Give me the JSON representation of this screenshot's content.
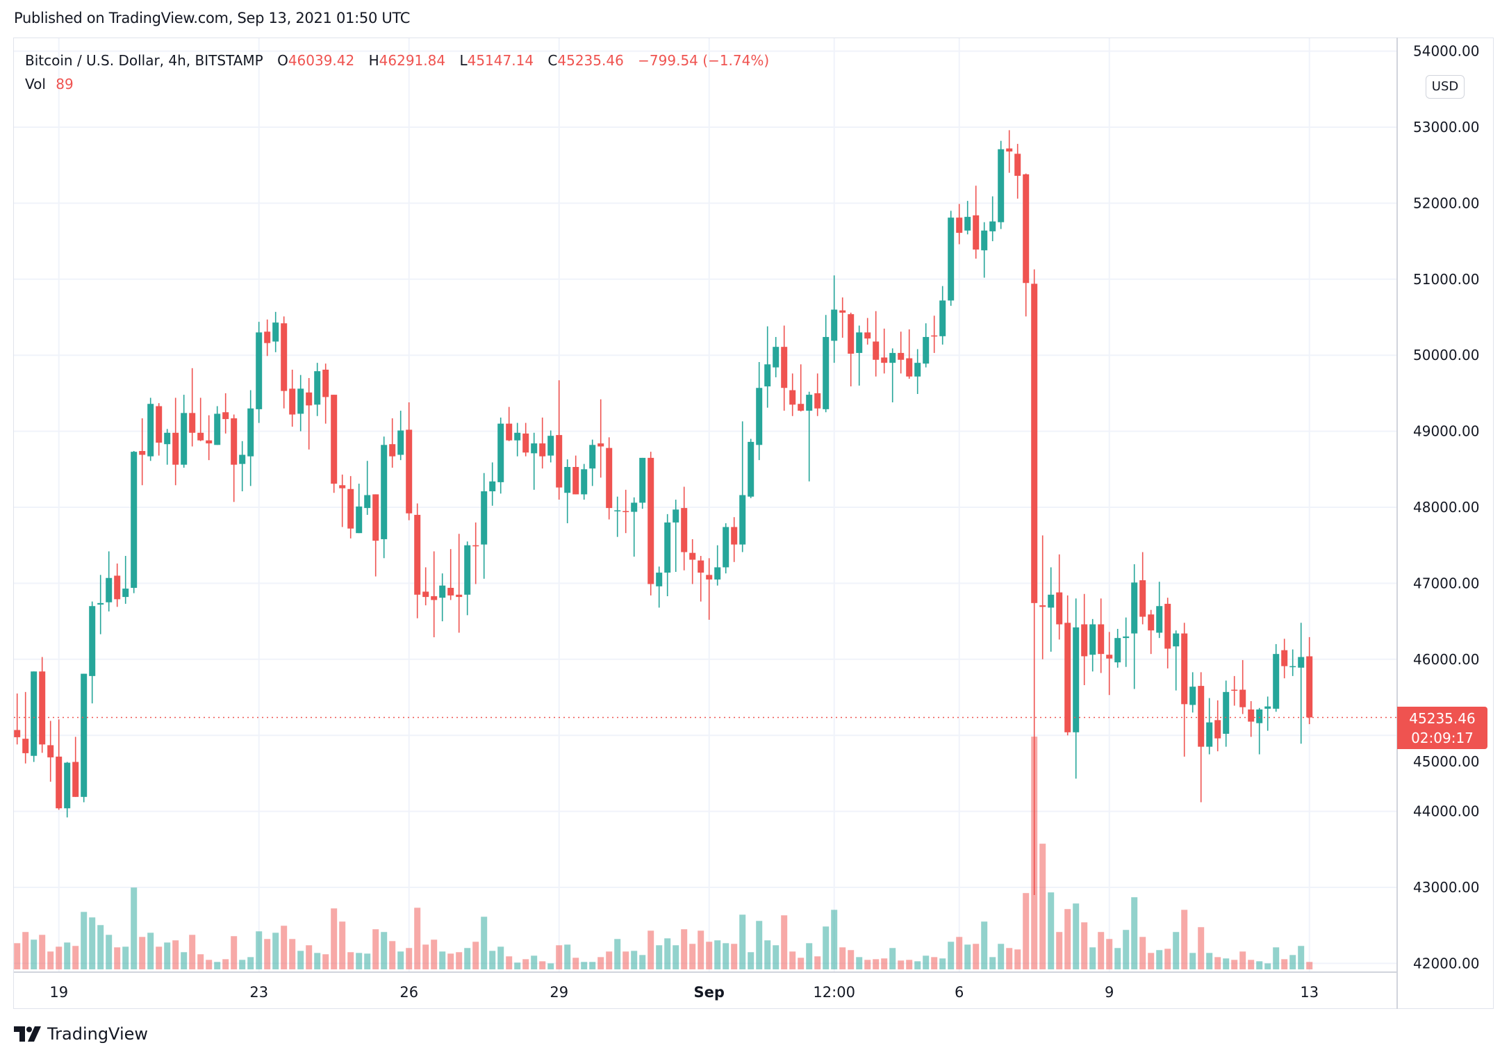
{
  "header": {
    "published": "Published on TradingView.com, Sep 13, 2021 01:50 UTC"
  },
  "legend": {
    "symbol": "Bitcoin / U.S. Dollar, 4h, BITSTAMP",
    "o_label": "O",
    "o": "46039.42",
    "h_label": "H",
    "h": "46291.84",
    "l_label": "L",
    "l": "45147.14",
    "c_label": "C",
    "c": "45235.46",
    "change": "−799.54 (−1.74%)",
    "vol_label": "Vol",
    "vol": "89"
  },
  "price_axis": {
    "currency": "USD",
    "last_price": "45235.46",
    "countdown": "02:09:17"
  },
  "footer": {
    "brand": "TradingView"
  },
  "colors": {
    "up": "#26a69a",
    "down": "#ef5350",
    "text": "#131722",
    "grid": "#f0f3fa"
  },
  "chart_data": {
    "type": "candlestick",
    "title": "Bitcoin / U.S. Dollar, 4h, BITSTAMP",
    "xlabel": "",
    "ylabel": "USD",
    "ylim": [
      41900,
      54000
    ],
    "grid": true,
    "last_price": 45235.46,
    "yticks": [
      {
        "value": 54000,
        "label": "54000.00"
      },
      {
        "value": 53000,
        "label": "53000.00"
      },
      {
        "value": 52000,
        "label": "52000.00"
      },
      {
        "value": 51000,
        "label": "51000.00"
      },
      {
        "value": 50000,
        "label": "50000.00"
      },
      {
        "value": 49000,
        "label": "49000.00"
      },
      {
        "value": 48000,
        "label": "48000.00"
      },
      {
        "value": 47000,
        "label": "47000.00"
      },
      {
        "value": 46000,
        "label": "46000.00"
      },
      {
        "value": 45000,
        "label": "45000.00"
      },
      {
        "value": 44000,
        "label": "44000.00"
      },
      {
        "value": 43000,
        "label": "43000.00"
      },
      {
        "value": 42000,
        "label": "42000.00"
      }
    ],
    "xticks": [
      {
        "index": 5,
        "label": "19"
      },
      {
        "index": 29,
        "label": "23"
      },
      {
        "index": 47,
        "label": "26"
      },
      {
        "index": 65,
        "label": "29"
      },
      {
        "index": 83,
        "label": "Sep"
      },
      {
        "index": 98,
        "label": "12:00"
      },
      {
        "index": 113,
        "label": "6"
      },
      {
        "index": 131,
        "label": "9"
      },
      {
        "index": 155,
        "label": "13"
      }
    ],
    "candle_fields": [
      "open",
      "high",
      "low",
      "close",
      "volume"
    ],
    "candles": [
      [
        45070,
        45550,
        44880,
        44975,
        314
      ],
      [
        44955,
        45570,
        44630,
        44765,
        448
      ],
      [
        44730,
        45840,
        44650,
        45840,
        356
      ],
      [
        45840,
        46030,
        44770,
        44880,
        414
      ],
      [
        44870,
        45190,
        44390,
        44710,
        214
      ],
      [
        44720,
        45210,
        44020,
        44040,
        272
      ],
      [
        44040,
        44650,
        43920,
        44640,
        322
      ],
      [
        44650,
        44980,
        44190,
        44190,
        281
      ],
      [
        44190,
        45810,
        44120,
        45810,
        689
      ],
      [
        45780,
        46760,
        45420,
        46700,
        623
      ],
      [
        46720,
        47110,
        46330,
        46740,
        531
      ],
      [
        46750,
        47420,
        46630,
        47070,
        414
      ],
      [
        47100,
        47260,
        46690,
        46790,
        264
      ],
      [
        46820,
        47360,
        46730,
        46930,
        272
      ],
      [
        46940,
        48740,
        46870,
        48730,
        981
      ],
      [
        48740,
        49170,
        48290,
        48690,
        389
      ],
      [
        48670,
        49440,
        48610,
        49360,
        439
      ],
      [
        49330,
        49370,
        48680,
        48850,
        272
      ],
      [
        48830,
        49030,
        48560,
        48980,
        322
      ],
      [
        48980,
        49440,
        48290,
        48560,
        348
      ],
      [
        48560,
        49480,
        48520,
        49240,
        206
      ],
      [
        49240,
        49830,
        48800,
        48980,
        414
      ],
      [
        48980,
        49440,
        48870,
        48880,
        181
      ],
      [
        48880,
        49210,
        48620,
        48840,
        114
      ],
      [
        48820,
        49330,
        48820,
        49230,
        89
      ],
      [
        49250,
        49500,
        48970,
        49160,
        122
      ],
      [
        49170,
        49220,
        48070,
        48560,
        398
      ],
      [
        48570,
        48870,
        48210,
        48690,
        114
      ],
      [
        48670,
        49540,
        48280,
        49300,
        147
      ],
      [
        49290,
        50440,
        49110,
        50300,
        456
      ],
      [
        50310,
        50470,
        49990,
        50160,
        364
      ],
      [
        50180,
        50570,
        50040,
        50430,
        439
      ],
      [
        50420,
        50510,
        49300,
        49530,
        523
      ],
      [
        49560,
        49810,
        49060,
        49220,
        364
      ],
      [
        49230,
        49740,
        49000,
        49560,
        222
      ],
      [
        49510,
        49700,
        48760,
        49340,
        289
      ],
      [
        49350,
        49900,
        49200,
        49790,
        197
      ],
      [
        49810,
        49890,
        49100,
        49450,
        181
      ],
      [
        49480,
        49480,
        48190,
        48310,
        731
      ],
      [
        48290,
        48430,
        47740,
        48250,
        573
      ],
      [
        48240,
        48410,
        47590,
        47720,
        206
      ],
      [
        47660,
        48310,
        47660,
        48010,
        197
      ],
      [
        47990,
        48610,
        47900,
        48160,
        189
      ],
      [
        48170,
        48170,
        47090,
        47560,
        481
      ],
      [
        47580,
        48930,
        47330,
        48820,
        448
      ],
      [
        48830,
        49170,
        48520,
        48670,
        339
      ],
      [
        48690,
        49270,
        48620,
        49010,
        214
      ],
      [
        49020,
        49380,
        47830,
        47920,
        256
      ],
      [
        47900,
        48050,
        46540,
        46850,
        739
      ],
      [
        46890,
        47210,
        46710,
        46820,
        297
      ],
      [
        46830,
        47420,
        46290,
        46780,
        356
      ],
      [
        46810,
        47130,
        46500,
        46970,
        214
      ],
      [
        46940,
        47450,
        46780,
        46840,
        189
      ],
      [
        46850,
        47650,
        46350,
        46820,
        206
      ],
      [
        46850,
        47550,
        46580,
        47500,
        256
      ],
      [
        47500,
        47800,
        46990,
        47490,
        331
      ],
      [
        47510,
        48450,
        47060,
        48210,
        631
      ],
      [
        48210,
        48590,
        48020,
        48340,
        222
      ],
      [
        48330,
        49180,
        48180,
        49100,
        272
      ],
      [
        49100,
        49320,
        48870,
        48880,
        156
      ],
      [
        48880,
        49110,
        48670,
        48980,
        81
      ],
      [
        48970,
        49110,
        48670,
        48720,
        122
      ],
      [
        48710,
        48980,
        48230,
        48840,
        164
      ],
      [
        48840,
        49180,
        48510,
        48670,
        97
      ],
      [
        48680,
        49010,
        48590,
        48940,
        72
      ],
      [
        48950,
        49670,
        48100,
        48260,
        289
      ],
      [
        48190,
        48630,
        47790,
        48530,
        297
      ],
      [
        48530,
        48680,
        48170,
        48170,
        139
      ],
      [
        48170,
        48570,
        48100,
        48500,
        89
      ],
      [
        48510,
        48890,
        48280,
        48820,
        89
      ],
      [
        48840,
        49420,
        48390,
        48800,
        147
      ],
      [
        48780,
        48920,
        47840,
        47990,
        214
      ],
      [
        47950,
        48140,
        47610,
        47960,
        364
      ],
      [
        47950,
        48230,
        47660,
        47940,
        214
      ],
      [
        47940,
        48130,
        47350,
        48060,
        222
      ],
      [
        48060,
        48650,
        47980,
        48650,
        172
      ],
      [
        48650,
        48730,
        46840,
        46990,
        464
      ],
      [
        46960,
        47220,
        46680,
        47140,
        289
      ],
      [
        47140,
        47910,
        46830,
        47800,
        372
      ],
      [
        47800,
        48100,
        47150,
        47970,
        289
      ],
      [
        47990,
        48270,
        47170,
        47410,
        481
      ],
      [
        47400,
        47580,
        46990,
        47310,
        306
      ],
      [
        47300,
        47360,
        46760,
        47140,
        464
      ],
      [
        47110,
        47330,
        46520,
        47050,
        331
      ],
      [
        47050,
        47500,
        46970,
        47210,
        348
      ],
      [
        47210,
        47790,
        47130,
        47740,
        314
      ],
      [
        47740,
        47870,
        47280,
        47510,
        306
      ],
      [
        47510,
        49130,
        47410,
        48160,
        656
      ],
      [
        48140,
        48900,
        48120,
        48860,
        206
      ],
      [
        48820,
        49910,
        48620,
        49570,
        581
      ],
      [
        49590,
        50380,
        49310,
        49880,
        348
      ],
      [
        49840,
        50240,
        49710,
        50110,
        289
      ],
      [
        50110,
        50390,
        49270,
        49570,
        648
      ],
      [
        49540,
        49760,
        49200,
        49350,
        214
      ],
      [
        49360,
        49880,
        49260,
        49270,
        139
      ],
      [
        49270,
        49520,
        48340,
        49480,
        314
      ],
      [
        49500,
        49760,
        49200,
        49300,
        156
      ],
      [
        49290,
        50530,
        49250,
        50240,
        514
      ],
      [
        50190,
        51050,
        49900,
        50600,
        714
      ],
      [
        50590,
        50760,
        50230,
        50560,
        264
      ],
      [
        50540,
        50560,
        49590,
        50020,
        231
      ],
      [
        50030,
        50390,
        49600,
        50300,
        147
      ],
      [
        50300,
        50490,
        50140,
        50220,
        114
      ],
      [
        50180,
        50580,
        49720,
        49940,
        122
      ],
      [
        49970,
        50350,
        49760,
        49900,
        131
      ],
      [
        49900,
        50090,
        49380,
        50030,
        256
      ],
      [
        50030,
        50310,
        49760,
        49940,
        106
      ],
      [
        49960,
        50340,
        49690,
        49720,
        114
      ],
      [
        49720,
        50080,
        49490,
        49900,
        97
      ],
      [
        49890,
        50420,
        49840,
        50240,
        164
      ],
      [
        50260,
        50520,
        50030,
        50250,
        147
      ],
      [
        50250,
        50910,
        50140,
        50720,
        131
      ],
      [
        50720,
        51900,
        50650,
        51810,
        331
      ],
      [
        51810,
        51990,
        51460,
        51610,
        389
      ],
      [
        51640,
        52030,
        51590,
        51820,
        297
      ],
      [
        51840,
        52230,
        51270,
        51390,
        306
      ],
      [
        51380,
        51750,
        51020,
        51640,
        573
      ],
      [
        51630,
        52090,
        51500,
        51760,
        147
      ],
      [
        51750,
        52820,
        51660,
        52710,
        306
      ],
      [
        52720,
        52960,
        52400,
        52680,
        256
      ],
      [
        52650,
        52780,
        52060,
        52360,
        239
      ],
      [
        52380,
        52390,
        50510,
        50950,
        915
      ],
      [
        50940,
        51130,
        42900,
        46740,
        2791
      ],
      [
        46710,
        47630,
        46000,
        46690,
        1507
      ],
      [
        46680,
        47210,
        46100,
        46850,
        923
      ],
      [
        46880,
        47380,
        46260,
        46460,
        448
      ],
      [
        46480,
        46840,
        45000,
        45040,
        723
      ],
      [
        45040,
        46800,
        44430,
        46420,
        790
      ],
      [
        46460,
        46860,
        45660,
        46040,
        564
      ],
      [
        46060,
        46530,
        45840,
        46460,
        264
      ],
      [
        46460,
        46800,
        45820,
        46070,
        448
      ],
      [
        46060,
        46360,
        45530,
        46010,
        364
      ],
      [
        45960,
        46400,
        45890,
        46280,
        256
      ],
      [
        46280,
        46550,
        45900,
        46300,
        473
      ],
      [
        46340,
        47250,
        45610,
        47010,
        865
      ],
      [
        47040,
        47410,
        46460,
        46560,
        389
      ],
      [
        46590,
        46650,
        46070,
        46380,
        197
      ],
      [
        46350,
        47020,
        46280,
        46700,
        231
      ],
      [
        46730,
        46810,
        45880,
        46140,
        247
      ],
      [
        46170,
        46380,
        45590,
        46340,
        448
      ],
      [
        46340,
        46480,
        44720,
        45410,
        714
      ],
      [
        45400,
        45830,
        45300,
        45640,
        197
      ],
      [
        45650,
        45830,
        44120,
        44850,
        506
      ],
      [
        44850,
        45490,
        44750,
        45170,
        197
      ],
      [
        45200,
        45460,
        44790,
        44960,
        147
      ],
      [
        45020,
        45720,
        44850,
        45570,
        131
      ],
      [
        45600,
        45780,
        45390,
        45590,
        114
      ],
      [
        45600,
        45990,
        45280,
        45370,
        214
      ],
      [
        45340,
        45450,
        44980,
        45180,
        114
      ],
      [
        45160,
        45360,
        44750,
        45340,
        97
      ],
      [
        45350,
        45510,
        45060,
        45380,
        72
      ],
      [
        45350,
        46200,
        45310,
        46070,
        264
      ],
      [
        46120,
        46270,
        45750,
        45910,
        122
      ],
      [
        45900,
        46130,
        45780,
        45910,
        172
      ],
      [
        45890,
        46480,
        44890,
        46030,
        281
      ],
      [
        46039.42,
        46291.84,
        45147.14,
        45235.46,
        89
      ]
    ]
  }
}
